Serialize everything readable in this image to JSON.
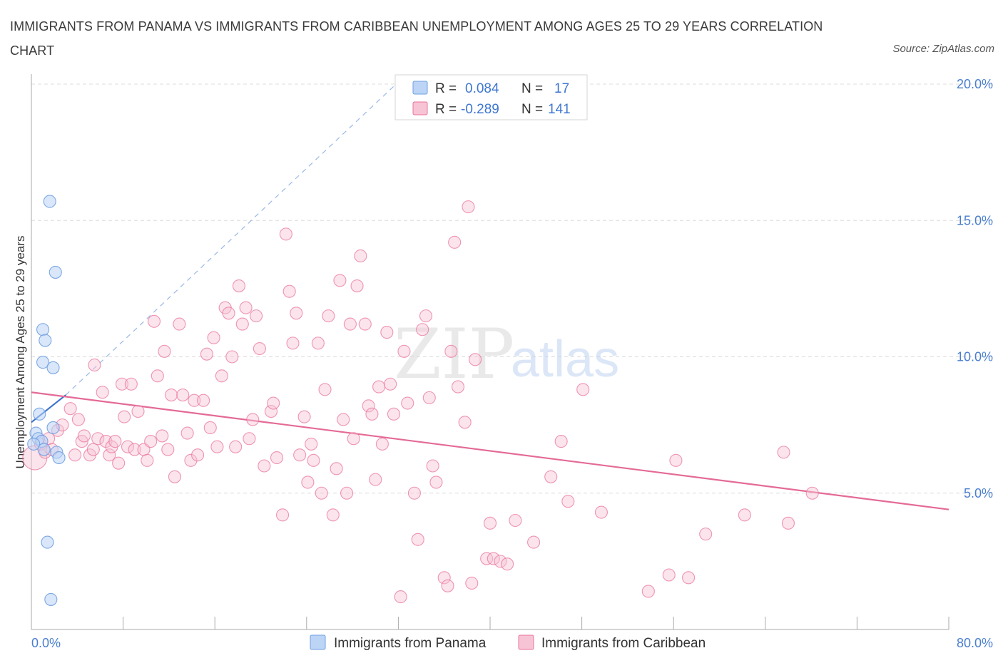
{
  "title": "IMMIGRANTS FROM PANAMA VS IMMIGRANTS FROM CARIBBEAN UNEMPLOYMENT AMONG AGES 25 TO 29 YEARS CORRELATION CHART",
  "source": "Source: ZipAtlas.com",
  "watermark": {
    "zip": "ZIP",
    "atlas": "atlas"
  },
  "colors": {
    "panama": "#6f9fe0",
    "panama_fill": "#bcd4f5",
    "caribbean": "#e9749c",
    "caribbean_fill": "#f7c4d5",
    "axis_text": "#4a7fcf"
  },
  "chart_data": {
    "type": "scatter",
    "xlabel": "",
    "ylabel": "Unemployment Among Ages 25 to 29 years",
    "xlim": [
      0,
      80
    ],
    "ylim": [
      0,
      20
    ],
    "x_tick_labels": {
      "left": "0.0%",
      "right": "80.0%"
    },
    "y_ticks": [
      5,
      10,
      15,
      20
    ],
    "y_tick_labels": [
      "5.0%",
      "10.0%",
      "15.0%",
      "20.0%"
    ],
    "legend": {
      "rows": [
        {
          "r_label": "R =",
          "r_value": "0.084",
          "n_label": "N =",
          "n_value": "17"
        },
        {
          "r_label": "R =",
          "r_value": "-0.289",
          "n_label": "N =",
          "n_value": "141"
        }
      ]
    },
    "series": [
      {
        "name": "Immigrants from Panama",
        "trend": {
          "x": [
            0,
            3.0
          ],
          "y": [
            7.6,
            8.6
          ],
          "extended": {
            "x": [
              3.0,
              31.8
            ],
            "y": [
              8.6,
              20.0
            ]
          }
        },
        "points": [
          {
            "x": 1.6,
            "y": 15.7
          },
          {
            "x": 2.1,
            "y": 13.1
          },
          {
            "x": 1.0,
            "y": 11.0
          },
          {
            "x": 1.2,
            "y": 10.6
          },
          {
            "x": 1.0,
            "y": 9.8
          },
          {
            "x": 1.9,
            "y": 9.6
          },
          {
            "x": 0.7,
            "y": 7.9
          },
          {
            "x": 1.9,
            "y": 7.4
          },
          {
            "x": 0.4,
            "y": 7.2
          },
          {
            "x": 0.6,
            "y": 7.0
          },
          {
            "x": 0.9,
            "y": 6.9
          },
          {
            "x": 0.2,
            "y": 6.8
          },
          {
            "x": 1.1,
            "y": 6.6
          },
          {
            "x": 2.2,
            "y": 6.5
          },
          {
            "x": 2.4,
            "y": 6.3
          },
          {
            "x": 1.4,
            "y": 3.2
          },
          {
            "x": 1.7,
            "y": 1.1
          }
        ]
      },
      {
        "name": "Immigrants from Caribbean",
        "trend": {
          "x": [
            0,
            80
          ],
          "y": [
            8.7,
            4.4
          ]
        },
        "points": [
          {
            "x": 0.3,
            "y": 6.3
          },
          {
            "x": 0.8,
            "y": 6.8
          },
          {
            "x": 1.2,
            "y": 6.5
          },
          {
            "x": 1.5,
            "y": 7.0
          },
          {
            "x": 1.8,
            "y": 6.6
          },
          {
            "x": 2.3,
            "y": 7.3
          },
          {
            "x": 2.7,
            "y": 7.5
          },
          {
            "x": 3.4,
            "y": 8.1
          },
          {
            "x": 3.8,
            "y": 6.4
          },
          {
            "x": 4.1,
            "y": 7.7
          },
          {
            "x": 4.4,
            "y": 6.9
          },
          {
            "x": 4.6,
            "y": 7.1
          },
          {
            "x": 5.1,
            "y": 6.4
          },
          {
            "x": 5.4,
            "y": 6.6
          },
          {
            "x": 5.5,
            "y": 9.7
          },
          {
            "x": 5.8,
            "y": 7.0
          },
          {
            "x": 6.2,
            "y": 8.7
          },
          {
            "x": 6.5,
            "y": 6.9
          },
          {
            "x": 6.8,
            "y": 6.4
          },
          {
            "x": 7.0,
            "y": 6.7
          },
          {
            "x": 7.3,
            "y": 6.9
          },
          {
            "x": 7.6,
            "y": 6.1
          },
          {
            "x": 7.9,
            "y": 9.0
          },
          {
            "x": 8.1,
            "y": 7.8
          },
          {
            "x": 8.4,
            "y": 6.7
          },
          {
            "x": 8.7,
            "y": 9.0
          },
          {
            "x": 9.0,
            "y": 6.6
          },
          {
            "x": 9.3,
            "y": 8.0
          },
          {
            "x": 9.8,
            "y": 6.6
          },
          {
            "x": 10.1,
            "y": 6.2
          },
          {
            "x": 10.4,
            "y": 6.9
          },
          {
            "x": 10.7,
            "y": 11.3
          },
          {
            "x": 11.0,
            "y": 9.3
          },
          {
            "x": 11.4,
            "y": 7.1
          },
          {
            "x": 11.6,
            "y": 10.2
          },
          {
            "x": 11.9,
            "y": 6.6
          },
          {
            "x": 12.2,
            "y": 8.6
          },
          {
            "x": 12.5,
            "y": 5.6
          },
          {
            "x": 12.9,
            "y": 11.2
          },
          {
            "x": 13.2,
            "y": 8.6
          },
          {
            "x": 13.6,
            "y": 7.2
          },
          {
            "x": 13.9,
            "y": 6.2
          },
          {
            "x": 14.2,
            "y": 8.4
          },
          {
            "x": 14.5,
            "y": 6.4
          },
          {
            "x": 15.0,
            "y": 8.4
          },
          {
            "x": 15.3,
            "y": 10.1
          },
          {
            "x": 15.6,
            "y": 7.4
          },
          {
            "x": 15.9,
            "y": 10.7
          },
          {
            "x": 16.2,
            "y": 6.7
          },
          {
            "x": 16.6,
            "y": 9.3
          },
          {
            "x": 16.9,
            "y": 11.8
          },
          {
            "x": 17.2,
            "y": 11.6
          },
          {
            "x": 17.5,
            "y": 10.0
          },
          {
            "x": 17.8,
            "y": 6.7
          },
          {
            "x": 18.1,
            "y": 12.6
          },
          {
            "x": 18.4,
            "y": 11.2
          },
          {
            "x": 18.7,
            "y": 11.8
          },
          {
            "x": 19.0,
            "y": 7.0
          },
          {
            "x": 19.3,
            "y": 7.7
          },
          {
            "x": 19.6,
            "y": 11.5
          },
          {
            "x": 19.9,
            "y": 10.3
          },
          {
            "x": 20.3,
            "y": 6.0
          },
          {
            "x": 20.9,
            "y": 8.0
          },
          {
            "x": 21.1,
            "y": 8.3
          },
          {
            "x": 21.4,
            "y": 6.3
          },
          {
            "x": 21.9,
            "y": 4.2
          },
          {
            "x": 22.2,
            "y": 14.5
          },
          {
            "x": 22.5,
            "y": 12.4
          },
          {
            "x": 22.8,
            "y": 10.5
          },
          {
            "x": 23.1,
            "y": 11.6
          },
          {
            "x": 23.4,
            "y": 6.4
          },
          {
            "x": 23.8,
            "y": 7.8
          },
          {
            "x": 24.1,
            "y": 5.4
          },
          {
            "x": 24.4,
            "y": 6.8
          },
          {
            "x": 24.6,
            "y": 6.2
          },
          {
            "x": 25.0,
            "y": 10.5
          },
          {
            "x": 25.3,
            "y": 5.0
          },
          {
            "x": 25.6,
            "y": 8.8
          },
          {
            "x": 25.9,
            "y": 11.5
          },
          {
            "x": 26.3,
            "y": 4.2
          },
          {
            "x": 26.6,
            "y": 5.9
          },
          {
            "x": 26.9,
            "y": 12.8
          },
          {
            "x": 27.2,
            "y": 7.7
          },
          {
            "x": 27.5,
            "y": 5.0
          },
          {
            "x": 27.8,
            "y": 11.2
          },
          {
            "x": 28.1,
            "y": 7.0
          },
          {
            "x": 28.4,
            "y": 12.6
          },
          {
            "x": 28.7,
            "y": 13.7
          },
          {
            "x": 29.1,
            "y": 11.2
          },
          {
            "x": 29.4,
            "y": 8.2
          },
          {
            "x": 29.7,
            "y": 7.9
          },
          {
            "x": 30.0,
            "y": 5.5
          },
          {
            "x": 30.3,
            "y": 8.9
          },
          {
            "x": 30.6,
            "y": 6.8
          },
          {
            "x": 31.0,
            "y": 10.9
          },
          {
            "x": 31.3,
            "y": 9.0
          },
          {
            "x": 31.6,
            "y": 7.9
          },
          {
            "x": 32.2,
            "y": 1.2
          },
          {
            "x": 32.5,
            "y": 10.2
          },
          {
            "x": 32.8,
            "y": 8.3
          },
          {
            "x": 33.4,
            "y": 5.0
          },
          {
            "x": 33.7,
            "y": 3.3
          },
          {
            "x": 34.1,
            "y": 11.0
          },
          {
            "x": 34.4,
            "y": 11.5
          },
          {
            "x": 34.7,
            "y": 8.5
          },
          {
            "x": 35.0,
            "y": 6.0
          },
          {
            "x": 35.3,
            "y": 5.4
          },
          {
            "x": 36.0,
            "y": 1.9
          },
          {
            "x": 36.3,
            "y": 1.6
          },
          {
            "x": 36.6,
            "y": 10.2
          },
          {
            "x": 36.9,
            "y": 14.2
          },
          {
            "x": 37.2,
            "y": 8.9
          },
          {
            "x": 37.8,
            "y": 7.6
          },
          {
            "x": 38.1,
            "y": 15.5
          },
          {
            "x": 38.4,
            "y": 1.7
          },
          {
            "x": 38.7,
            "y": 9.9
          },
          {
            "x": 39.7,
            "y": 2.6
          },
          {
            "x": 40.0,
            "y": 3.9
          },
          {
            "x": 40.3,
            "y": 2.6
          },
          {
            "x": 40.9,
            "y": 2.5
          },
          {
            "x": 41.5,
            "y": 2.4
          },
          {
            "x": 42.2,
            "y": 4.0
          },
          {
            "x": 43.8,
            "y": 3.2
          },
          {
            "x": 45.3,
            "y": 5.6
          },
          {
            "x": 46.2,
            "y": 6.9
          },
          {
            "x": 46.8,
            "y": 4.7
          },
          {
            "x": 48.1,
            "y": 8.8
          },
          {
            "x": 49.7,
            "y": 4.3
          },
          {
            "x": 53.8,
            "y": 1.4
          },
          {
            "x": 55.6,
            "y": 2.0
          },
          {
            "x": 56.2,
            "y": 6.2
          },
          {
            "x": 57.3,
            "y": 1.9
          },
          {
            "x": 58.8,
            "y": 3.5
          },
          {
            "x": 62.2,
            "y": 4.2
          },
          {
            "x": 65.6,
            "y": 6.5
          },
          {
            "x": 66.0,
            "y": 3.9
          },
          {
            "x": 68.1,
            "y": 5.0
          }
        ]
      }
    ]
  },
  "bottom_legend": [
    {
      "label": "Immigrants from Panama"
    },
    {
      "label": "Immigrants from Caribbean"
    }
  ]
}
